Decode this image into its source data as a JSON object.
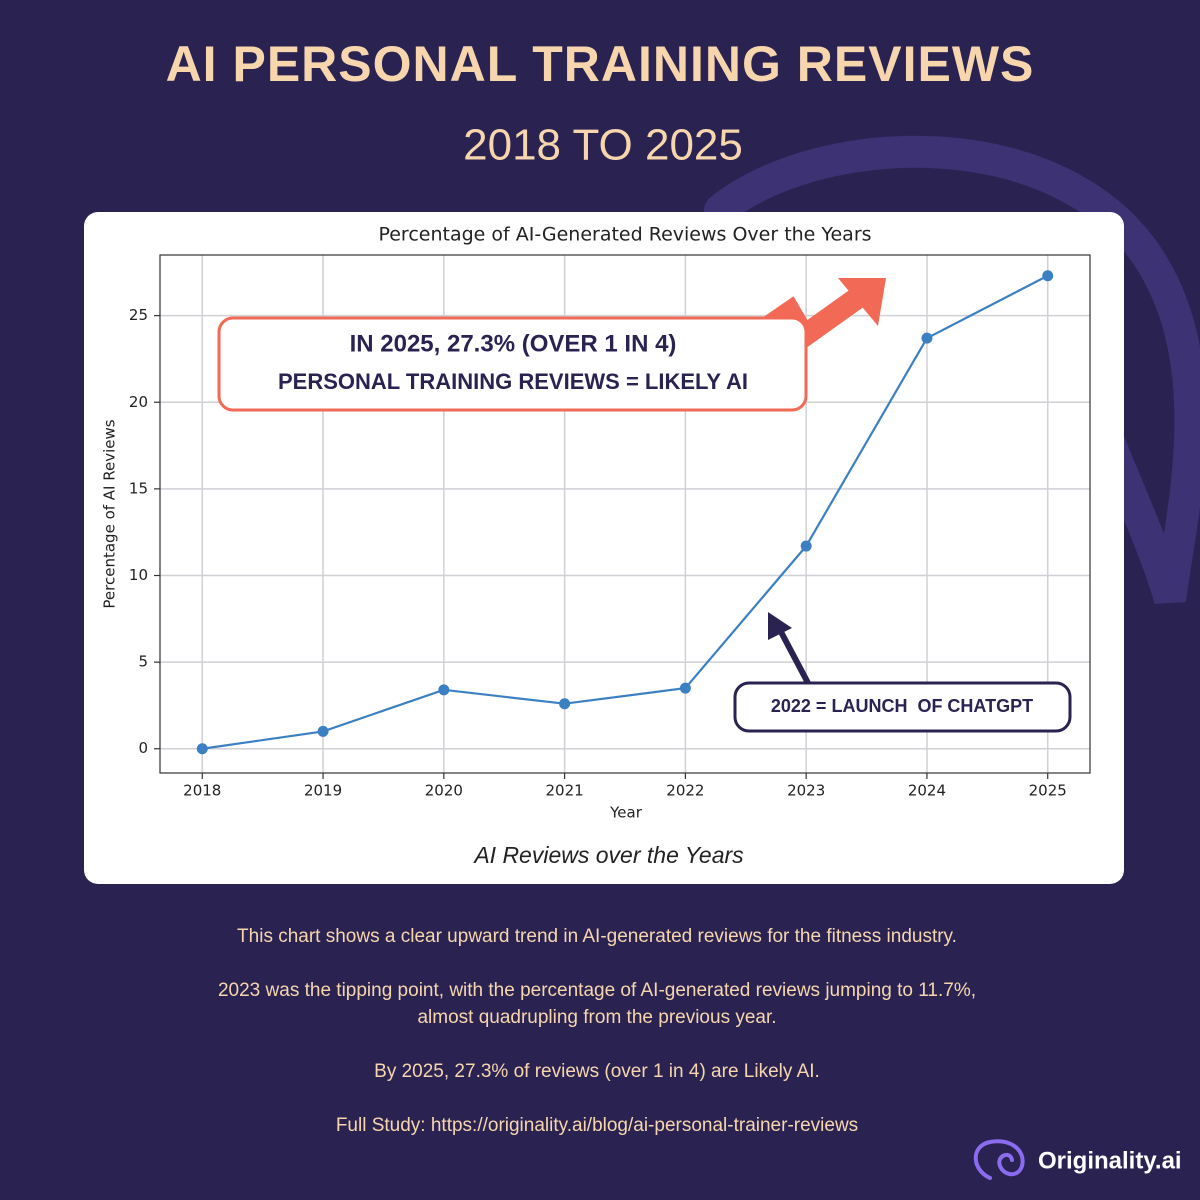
{
  "header": {
    "title": "AI PERSONAL TRAINING REVIEWS",
    "subtitle": "2018 TO 2025"
  },
  "chart_data": {
    "type": "line",
    "title": "Percentage of AI-Generated Reviews Over the Years",
    "xlabel": "Year",
    "ylabel": "Percentage of AI Reviews",
    "caption": "AI Reviews over the Years",
    "x": [
      2018,
      2019,
      2020,
      2021,
      2022,
      2023,
      2024,
      2025
    ],
    "series": [
      {
        "name": "AI Reviews",
        "color": "#3b80c3",
        "values": [
          0.0,
          1.0,
          3.4,
          2.6,
          3.5,
          11.7,
          23.7,
          27.3
        ]
      }
    ],
    "xlim": [
      2017.65,
      2025.35
    ],
    "ylim": [
      -1.4,
      28.5
    ],
    "xticks": [
      2018,
      2019,
      2020,
      2021,
      2022,
      2023,
      2024,
      2025
    ],
    "yticks": [
      0,
      5,
      10,
      15,
      20,
      25
    ],
    "grid": true,
    "annotations": [
      "IN 2025, 27.3% (OVER 1 IN 4)",
      "PERSONAL TRAINING REVIEWS = LIKELY AI",
      "2022 = LAUNCH  OF CHATGPT"
    ]
  },
  "body": [
    "This chart shows a clear upward trend in AI-generated reviews for the fitness industry.",
    "2023 was the tipping point, with the percentage of AI-generated reviews jumping to 11.7%,",
    "almost quadrupling from the previous year.",
    "By 2025, 27.3% of reviews (over 1 in 4) are Likely AI.",
    "Full Study: https://originality.ai/blog/ai-personal-trainer-reviews"
  ],
  "brand": "Originality.ai"
}
